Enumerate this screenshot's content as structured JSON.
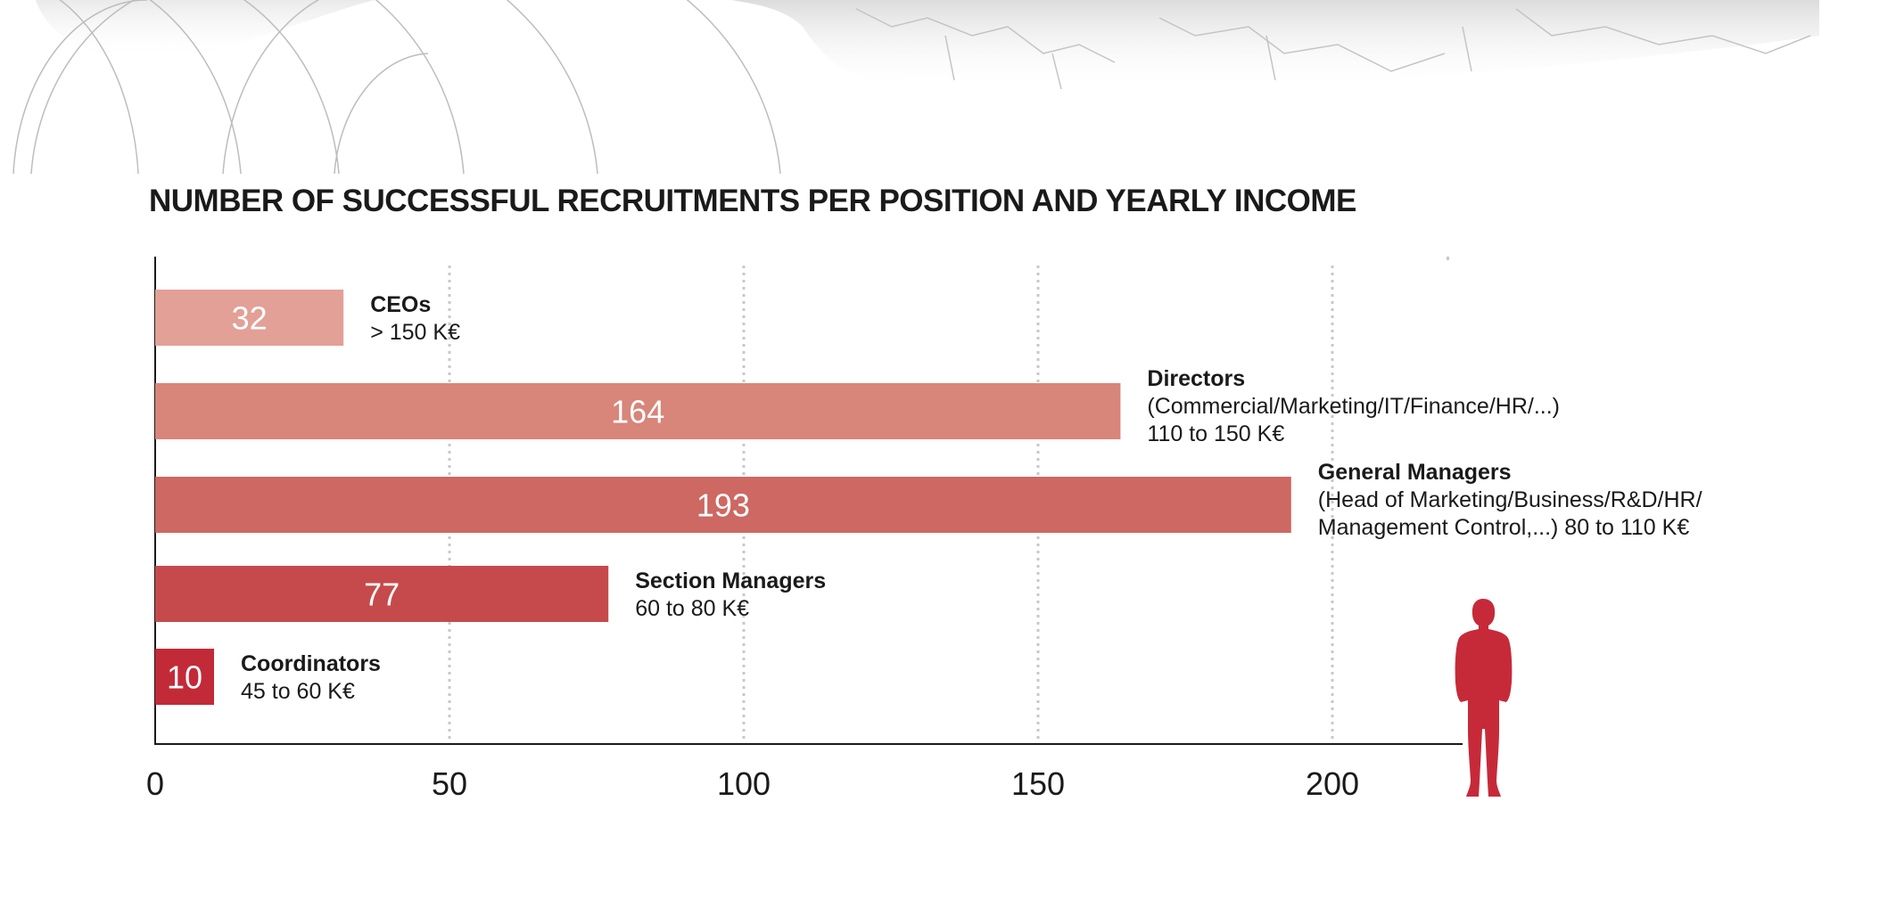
{
  "chart_data": {
    "type": "bar",
    "orientation": "horizontal",
    "title": "NUMBER OF SUCCESSFUL RECRUITMENTS PER POSITION AND YEARLY INCOME",
    "xlabel": "",
    "ylabel": "",
    "xlim": [
      0,
      223
    ],
    "x_ticks": [
      0,
      50,
      100,
      150,
      200
    ],
    "grid": "vertical dashed",
    "categories": [
      {
        "name": "CEOs",
        "details": [
          " > 150 K€"
        ]
      },
      {
        "name": "Directors",
        "details": [
          "(Commercial/Marketing/IT/Finance/HR/...)",
          "110 to 150 K€"
        ]
      },
      {
        "name": "General Managers",
        "details": [
          "(Head of Marketing/Business/R&D/HR/",
          "Management Control,...) 80 to 110 K€"
        ]
      },
      {
        "name": "Section Managers",
        "details": [
          "60 to 80 K€"
        ]
      },
      {
        "name": "Coordinators",
        "details": [
          "45 to 60 K€"
        ]
      }
    ],
    "values": [
      32,
      164,
      193,
      77,
      10
    ],
    "colors": [
      "#e2a097",
      "#d8857a",
      "#cd6862",
      "#c64a4b",
      "#c22a38"
    ]
  },
  "figure_color": "#c62a39",
  "icons": {
    "person": "businessman-silhouette-icon",
    "background": "world-map-icon"
  }
}
